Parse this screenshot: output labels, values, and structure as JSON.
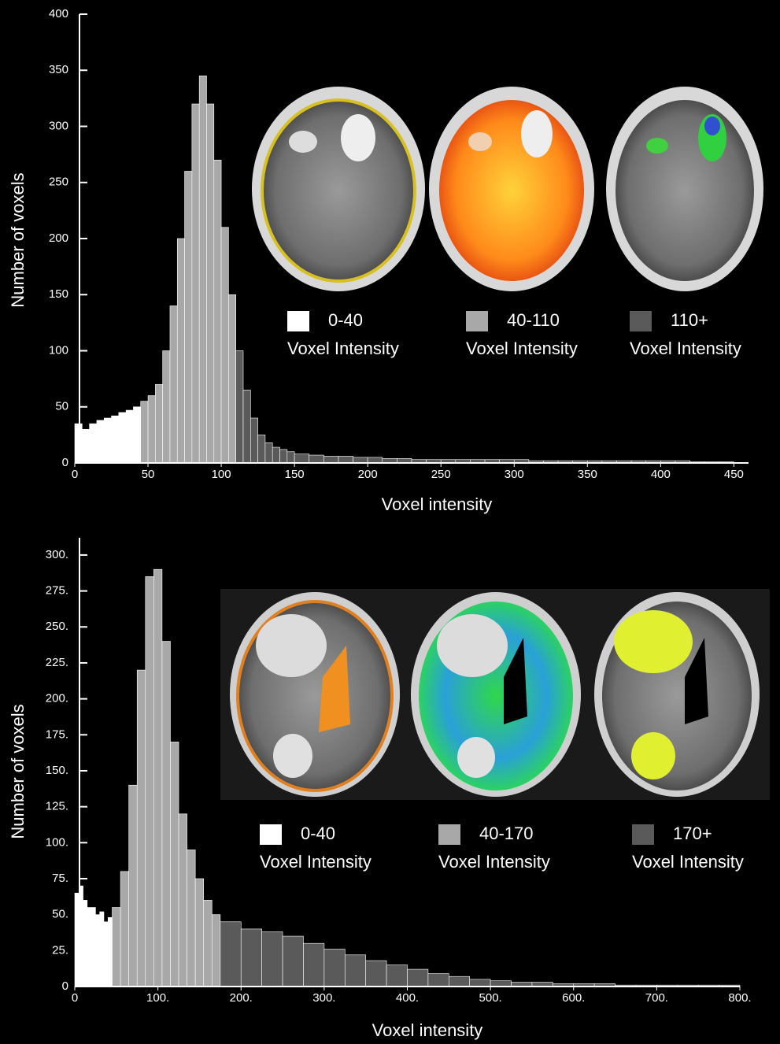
{
  "chart_data": [
    {
      "type": "histogram",
      "xlabel": "Voxel intensity",
      "ylabel": "Number of voxels",
      "xlim": [
        0,
        460
      ],
      "ylim": [
        0,
        400
      ],
      "xticks": [
        0,
        50,
        100,
        150,
        200,
        250,
        300,
        350,
        400,
        450
      ],
      "yticks": [
        0,
        50,
        100,
        150,
        200,
        250,
        300,
        350,
        400
      ],
      "series": [
        {
          "name": "0-40",
          "caption": "Voxel Intensity",
          "color": "#ffffff",
          "bins": [
            0,
            5,
            10,
            15,
            20,
            25,
            30,
            35,
            40,
            45
          ],
          "counts": [
            35,
            30,
            35,
            38,
            40,
            42,
            45,
            47,
            50
          ]
        },
        {
          "name": "40-110",
          "caption": "Voxel Intensity",
          "color": "#a8a8a8",
          "bins": [
            45,
            50,
            55,
            60,
            65,
            70,
            75,
            80,
            85,
            90,
            95,
            100,
            105,
            110
          ],
          "counts": [
            55,
            60,
            70,
            100,
            140,
            200,
            260,
            320,
            345,
            320,
            270,
            210,
            150
          ]
        },
        {
          "name": "110+",
          "caption": "Voxel Intensity",
          "color": "#5a5a5a",
          "bins": [
            110,
            115,
            120,
            125,
            130,
            135,
            140,
            145,
            150,
            160,
            170,
            180,
            190,
            200,
            210,
            220,
            230,
            240,
            250,
            260,
            270,
            280,
            290,
            300,
            310,
            320,
            330,
            340,
            350,
            360,
            370,
            380,
            390,
            400,
            410,
            420,
            430,
            440,
            450,
            460
          ],
          "counts": [
            100,
            65,
            40,
            25,
            18,
            14,
            12,
            10,
            8,
            7,
            6,
            6,
            5,
            5,
            4,
            4,
            3,
            3,
            3,
            3,
            3,
            3,
            3,
            3,
            2,
            2,
            2,
            2,
            2,
            2,
            2,
            2,
            2,
            2,
            2,
            1,
            1,
            1,
            0
          ]
        }
      ]
    },
    {
      "type": "histogram",
      "xlabel": "Voxel intensity",
      "ylabel": "Number of voxels",
      "xlim": [
        0,
        800
      ],
      "ylim": [
        0,
        312
      ],
      "xticks": [
        0,
        {
          "value": 100,
          "label": "100."
        },
        {
          "value": 200,
          "label": "200."
        },
        {
          "value": 300,
          "label": "300."
        },
        {
          "value": 400,
          "label": "400."
        },
        {
          "value": 500,
          "label": "500."
        },
        {
          "value": 600,
          "label": "600."
        },
        {
          "value": 700,
          "label": "700."
        },
        {
          "value": 800,
          "label": "800."
        }
      ],
      "yticks": [
        0,
        {
          "value": 25,
          "label": "25."
        },
        {
          "value": 50,
          "label": "50."
        },
        {
          "value": 75,
          "label": "75."
        },
        {
          "value": 100,
          "label": "100."
        },
        {
          "value": 125,
          "label": "125."
        },
        {
          "value": 150,
          "label": "150."
        },
        {
          "value": 175,
          "label": "175."
        },
        {
          "value": 200,
          "label": "200."
        },
        {
          "value": 225,
          "label": "225."
        },
        {
          "value": 250,
          "label": "250."
        },
        {
          "value": 275,
          "label": "275."
        },
        {
          "value": 300,
          "label": "300."
        }
      ],
      "series": [
        {
          "name": "0-40",
          "caption": "Voxel Intensity",
          "color": "#ffffff",
          "bins": [
            0,
            5,
            10,
            15,
            20,
            25,
            30,
            35,
            40,
            45
          ],
          "counts": [
            65,
            70,
            60,
            55,
            55,
            50,
            52,
            45,
            48
          ]
        },
        {
          "name": "40-170",
          "caption": "Voxel Intensity",
          "color": "#a8a8a8",
          "bins": [
            45,
            55,
            65,
            75,
            85,
            95,
            105,
            115,
            125,
            135,
            145,
            155,
            165,
            175
          ],
          "counts": [
            55,
            80,
            140,
            220,
            285,
            290,
            240,
            170,
            120,
            95,
            75,
            60,
            50
          ]
        },
        {
          "name": "170+",
          "caption": "Voxel Intensity",
          "color": "#5a5a5a",
          "bins": [
            175,
            200,
            225,
            250,
            275,
            300,
            325,
            350,
            375,
            400,
            425,
            450,
            475,
            500,
            525,
            550,
            575,
            600,
            625,
            650,
            675,
            700,
            725,
            750,
            775,
            800
          ],
          "counts": [
            45,
            40,
            38,
            35,
            30,
            26,
            22,
            18,
            15,
            12,
            9,
            7,
            5,
            4,
            3,
            3,
            2,
            2,
            2,
            1,
            1,
            1,
            1,
            1,
            1
          ]
        }
      ]
    }
  ]
}
